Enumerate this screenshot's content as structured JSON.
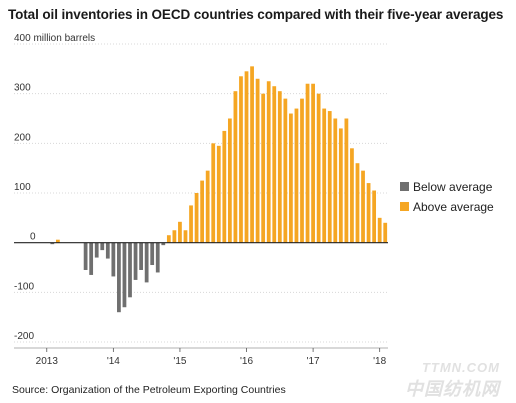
{
  "title": "Total oil inventories in OECD countries compared with their five-year averages",
  "source": "Source: Organization of the Petroleum Exporting Countries",
  "watermark": {
    "brand": "TTMN.COM",
    "cn": "中国纺机网"
  },
  "chart_data": {
    "type": "bar",
    "title": "Total oil inventories in OECD countries compared with their five-year averages",
    "ylabel": "million barrels",
    "ylim": [
      -200,
      400
    ],
    "y_ticks": [
      -200,
      -100,
      0,
      100,
      200,
      300,
      400
    ],
    "y_tick_labels": [
      "-200",
      "-100",
      "0",
      "100",
      "200",
      "300",
      "400 million barrels"
    ],
    "x_tick_labels": [
      "2013",
      "'14",
      "'15",
      "'16",
      "'17",
      "'18"
    ],
    "x_ticks_index": [
      0,
      12,
      24,
      36,
      48,
      60
    ],
    "colors": {
      "below": "#6f6f6f",
      "above": "#f5a623"
    },
    "legend": {
      "position": "right",
      "below": "Below average",
      "above": "Above average"
    },
    "values": [
      0,
      -3,
      6,
      0,
      0,
      0,
      0,
      -55,
      -65,
      -30,
      -15,
      -32,
      -68,
      -140,
      -130,
      -110,
      -75,
      -55,
      -80,
      -45,
      -60,
      -5,
      15,
      25,
      42,
      25,
      75,
      100,
      125,
      145,
      200,
      195,
      225,
      250,
      305,
      335,
      345,
      355,
      330,
      300,
      325,
      315,
      305,
      290,
      260,
      270,
      290,
      320,
      320,
      300,
      270,
      265,
      250,
      230,
      250,
      190,
      160,
      145,
      120,
      105,
      50,
      40
    ]
  }
}
